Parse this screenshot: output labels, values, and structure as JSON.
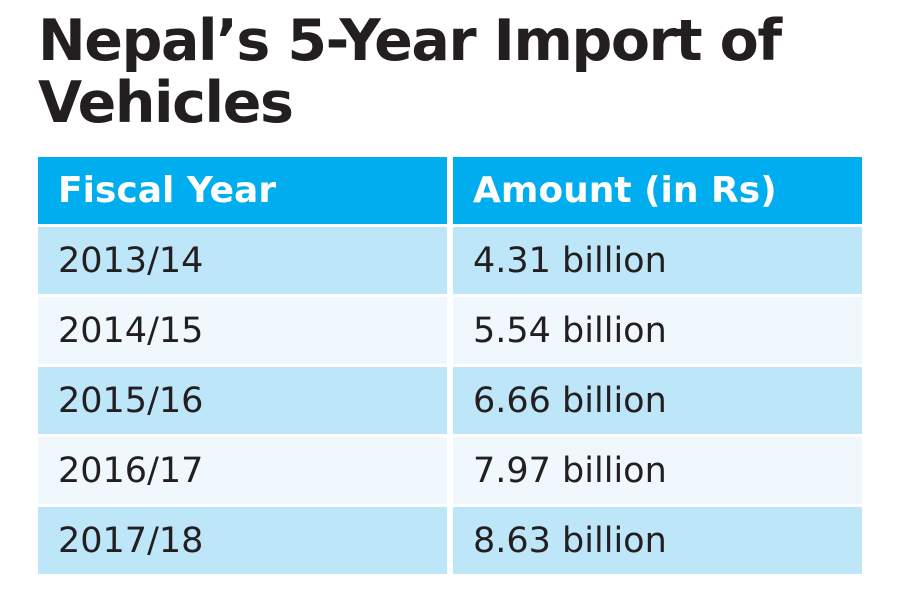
{
  "title": "Nepal’s 5-Year Import of Vehicles",
  "colors": {
    "header_bg": "#00aeef",
    "header_text": "#ffffff",
    "row_shaded": "#bde6f9",
    "row_light": "#f0f8fd",
    "text": "#231f20"
  },
  "chart_data": {
    "type": "table",
    "title": "Nepal’s 5-Year Import of Vehicles",
    "columns": [
      "Fiscal Year",
      "Amount (in Rs)"
    ],
    "rows": [
      [
        "2013/14",
        "4.31 billion"
      ],
      [
        "2014/15",
        "5.54 billion"
      ],
      [
        "2015/16",
        "6.66 billion"
      ],
      [
        "2016/17",
        "7.97 billion"
      ],
      [
        "2017/18",
        "8.63 billion"
      ]
    ]
  }
}
